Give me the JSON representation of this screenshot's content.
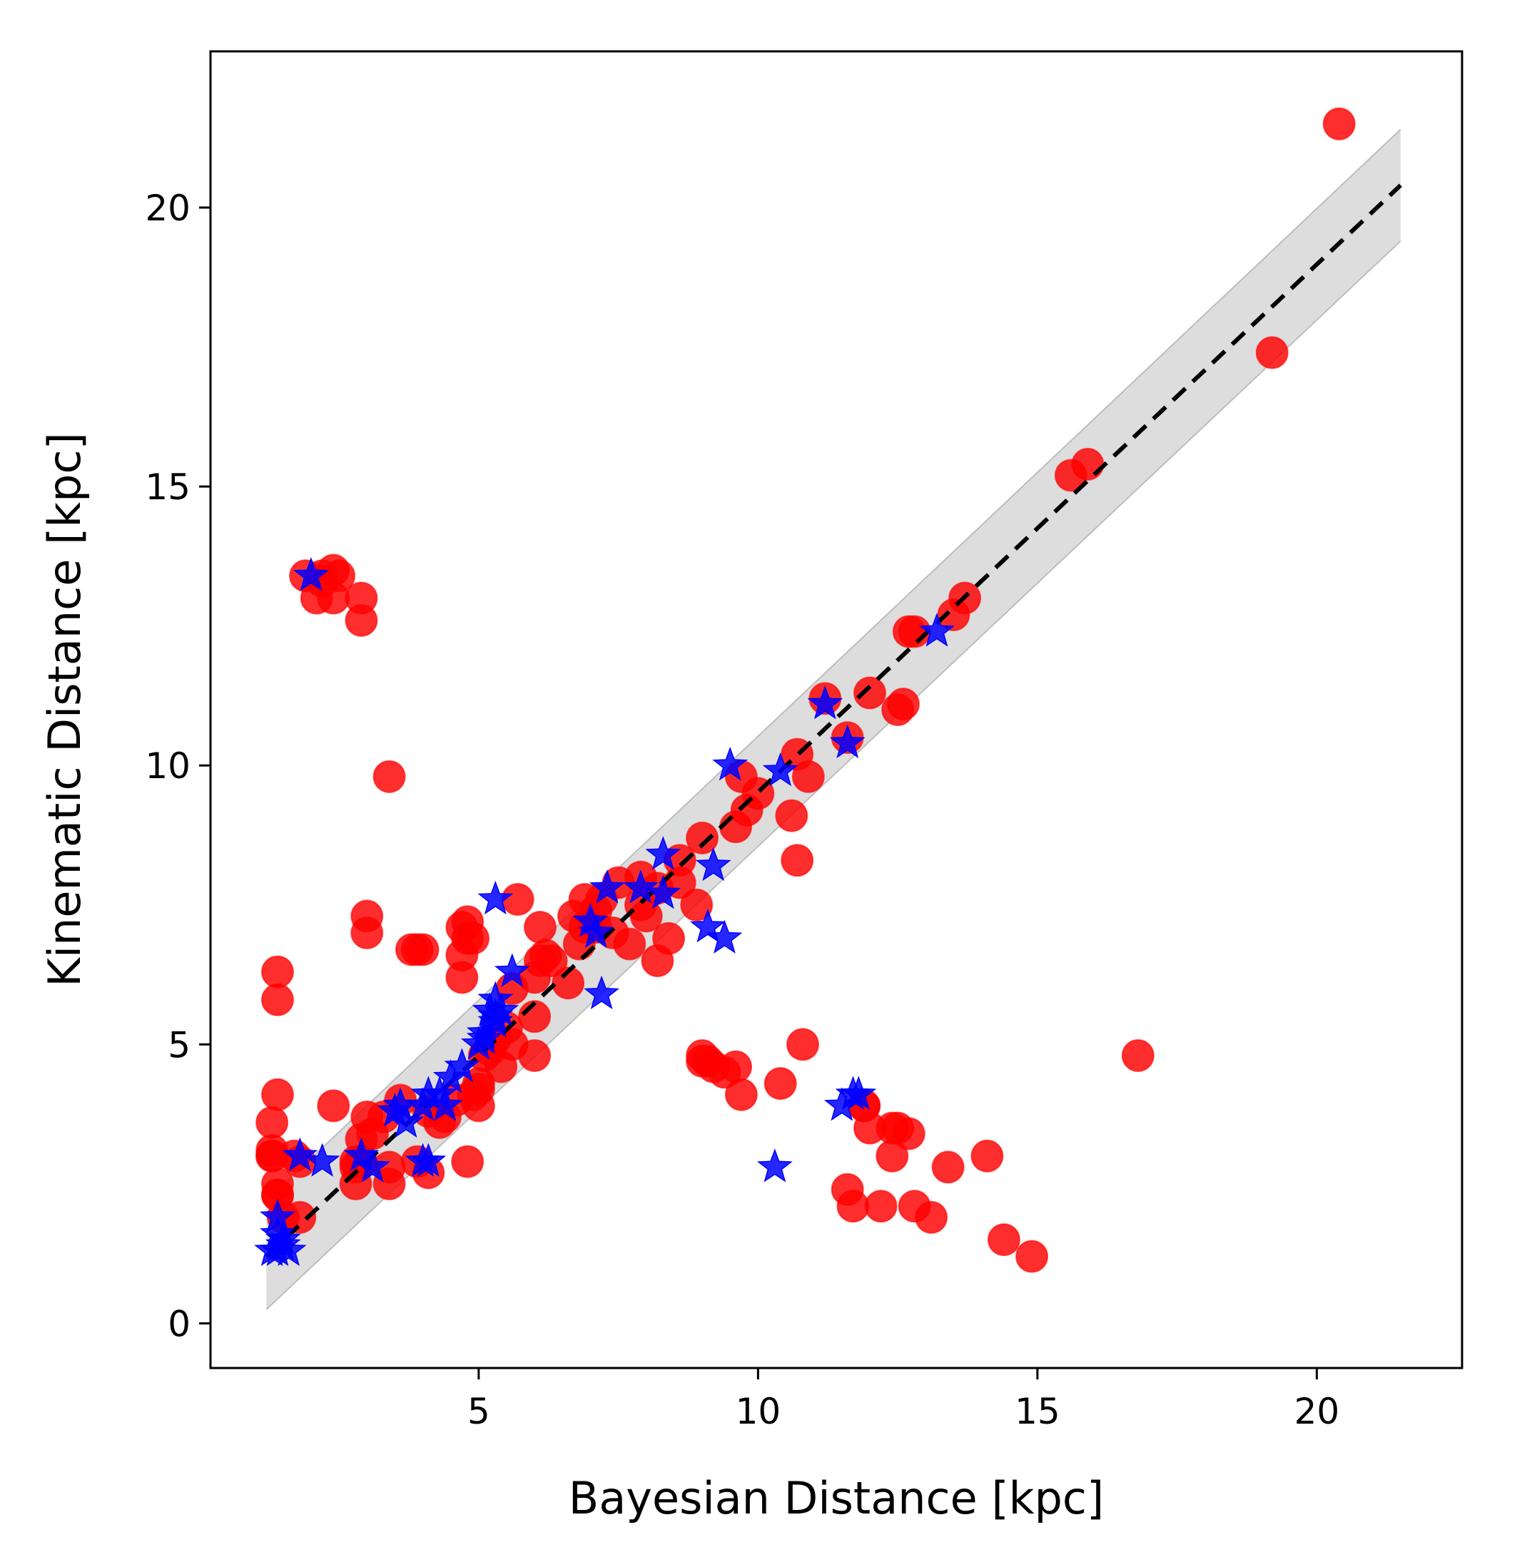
{
  "chart_data": {
    "type": "scatter",
    "title": "",
    "xlabel": "Bayesian Distance [kpc]",
    "ylabel": "Kinematic Distance [kpc]",
    "xlim": [
      0.2,
      22.6
    ],
    "ylim": [
      -0.8,
      22.8
    ],
    "xticks": [
      5,
      10,
      15,
      20
    ],
    "yticks": [
      0,
      5,
      10,
      15,
      20
    ],
    "grid": false,
    "legend": "none",
    "colors": {
      "circles": "#ff0000",
      "stars": "#0000ff",
      "band": "#d9d9d9",
      "line": "#000000"
    },
    "reference_line": {
      "x": [
        1.2,
        21.5
      ],
      "y": [
        1.2,
        20.4
      ]
    },
    "band": {
      "x": [
        1.2,
        21.5
      ],
      "lower": [
        0.25,
        19.4
      ],
      "upper": [
        2.2,
        21.4
      ]
    },
    "series": [
      {
        "marker": "circle",
        "x": [
          20.4,
          19.2,
          15.6,
          15.9,
          13.7,
          13.5,
          12.7,
          12.8,
          12.0,
          12.5,
          12.6,
          11.2,
          11.6,
          10.7,
          10.9,
          10.6,
          10.7,
          9.7,
          9.6,
          9.8,
          10.0,
          9.0,
          8.9,
          8.6,
          8.4,
          8.2,
          7.9,
          7.9,
          8.0,
          7.5,
          7.4,
          7.2,
          7.1,
          6.9,
          6.9,
          6.8,
          6.7,
          6.6,
          6.2,
          6.0,
          6.1,
          6.1,
          6.0,
          6.0,
          5.7,
          5.6,
          5.5,
          5.4,
          5.3,
          5.2,
          5.1,
          5.0,
          5.0,
          4.9,
          4.8,
          4.8,
          4.7,
          4.7,
          4.6,
          4.4,
          4.3,
          4.1,
          3.9,
          3.8,
          3.6,
          3.4,
          3.4,
          3.3,
          3.1,
          3.0,
          2.9,
          2.9,
          2.8,
          2.8,
          2.8,
          2.4,
          2.2,
          2.1,
          2.2,
          1.9,
          1.8,
          1.7,
          1.4,
          1.4,
          1.3,
          1.3,
          1.4,
          1.3,
          1.3,
          1.4,
          1.4,
          1.5,
          1.8,
          1.4,
          2.4,
          2.5,
          2.4,
          2.9,
          2.9,
          3.0,
          3.0,
          3.4,
          4.0,
          4.1,
          3.9,
          4.8,
          4.9,
          4.7,
          5.0,
          5.6,
          6.3,
          7.1,
          7.7,
          8.2,
          8.6,
          9.0,
          9.1,
          9.0,
          9.2,
          9.4,
          9.6,
          9.7,
          10.4,
          11.6,
          11.7,
          11.9,
          12.0,
          11.9,
          12.4,
          12.7,
          12.5,
          12.2,
          12.4,
          12.8,
          13.1,
          13.4,
          14.1,
          14.4,
          14.9,
          16.8,
          10.8
        ],
        "y": [
          21.5,
          17.4,
          15.2,
          15.4,
          13.0,
          12.7,
          12.4,
          12.4,
          11.3,
          11.0,
          11.1,
          11.2,
          10.5,
          10.2,
          9.8,
          9.1,
          8.3,
          9.8,
          8.9,
          9.2,
          9.5,
          8.7,
          7.5,
          8.3,
          6.9,
          7.8,
          7.5,
          8.0,
          7.3,
          7.9,
          7.0,
          7.6,
          7.4,
          7.6,
          7.1,
          6.8,
          7.3,
          6.1,
          6.6,
          6.2,
          6.5,
          7.1,
          4.8,
          5.5,
          7.6,
          5.0,
          5.3,
          4.6,
          5.1,
          4.9,
          4.8,
          4.3,
          3.9,
          4.1,
          7.2,
          6.9,
          6.2,
          6.6,
          4.0,
          3.7,
          3.6,
          3.8,
          6.7,
          6.7,
          4.0,
          2.5,
          2.8,
          3.7,
          3.4,
          3.7,
          3.3,
          2.9,
          2.9,
          2.8,
          2.5,
          13.5,
          13.3,
          13.0,
          13.4,
          13.4,
          2.9,
          3.0,
          6.3,
          5.8,
          3.1,
          3.0,
          4.1,
          3.6,
          3.0,
          2.5,
          2.3,
          1.9,
          1.9,
          2.3,
          3.9,
          13.4,
          13.0,
          13.0,
          12.6,
          7.3,
          7.0,
          9.8,
          6.7,
          2.7,
          2.9,
          2.9,
          6.9,
          7.1,
          4.2,
          6.0,
          6.5,
          7.1,
          6.8,
          6.5,
          7.9,
          4.8,
          4.7,
          4.7,
          4.6,
          4.5,
          4.6,
          4.1,
          4.3,
          2.4,
          2.1,
          3.9,
          3.5,
          3.9,
          3.5,
          3.4,
          3.5,
          2.1,
          3.0,
          2.1,
          1.9,
          2.8,
          3.0,
          1.5,
          1.2,
          4.8,
          5.0
        ]
      },
      {
        "marker": "star",
        "x": [
          1.4,
          1.4,
          1.5,
          1.3,
          1.4,
          1.5,
          1.6,
          1.8,
          2.2,
          2.0,
          2.9,
          3.1,
          3.5,
          3.6,
          3.7,
          4.0,
          4.1,
          4.3,
          4.4,
          4.5,
          4.7,
          5.0,
          5.1,
          5.2,
          5.3,
          5.4,
          5.3,
          5.1,
          5.3,
          5.6,
          5.3,
          4.0,
          4.1,
          7.2,
          7.3,
          7.1,
          7.0,
          7.9,
          8.3,
          8.3,
          9.1,
          9.2,
          9.4,
          9.5,
          10.4,
          11.2,
          11.6,
          13.2,
          11.5,
          11.7,
          11.8,
          10.3
        ],
        "y": [
          1.6,
          1.3,
          1.4,
          1.3,
          1.9,
          1.5,
          1.3,
          3.0,
          2.9,
          13.4,
          3.0,
          2.8,
          3.8,
          3.9,
          3.6,
          3.9,
          4.1,
          4.1,
          3.9,
          4.4,
          4.6,
          5.0,
          5.1,
          5.6,
          5.4,
          5.6,
          5.8,
          5.2,
          5.5,
          6.3,
          7.6,
          2.9,
          2.9,
          5.9,
          7.8,
          7.0,
          7.2,
          7.8,
          8.4,
          7.7,
          7.1,
          8.2,
          6.9,
          10.0,
          9.9,
          11.1,
          10.4,
          12.4,
          3.9,
          4.1,
          4.1,
          2.8
        ]
      }
    ]
  }
}
